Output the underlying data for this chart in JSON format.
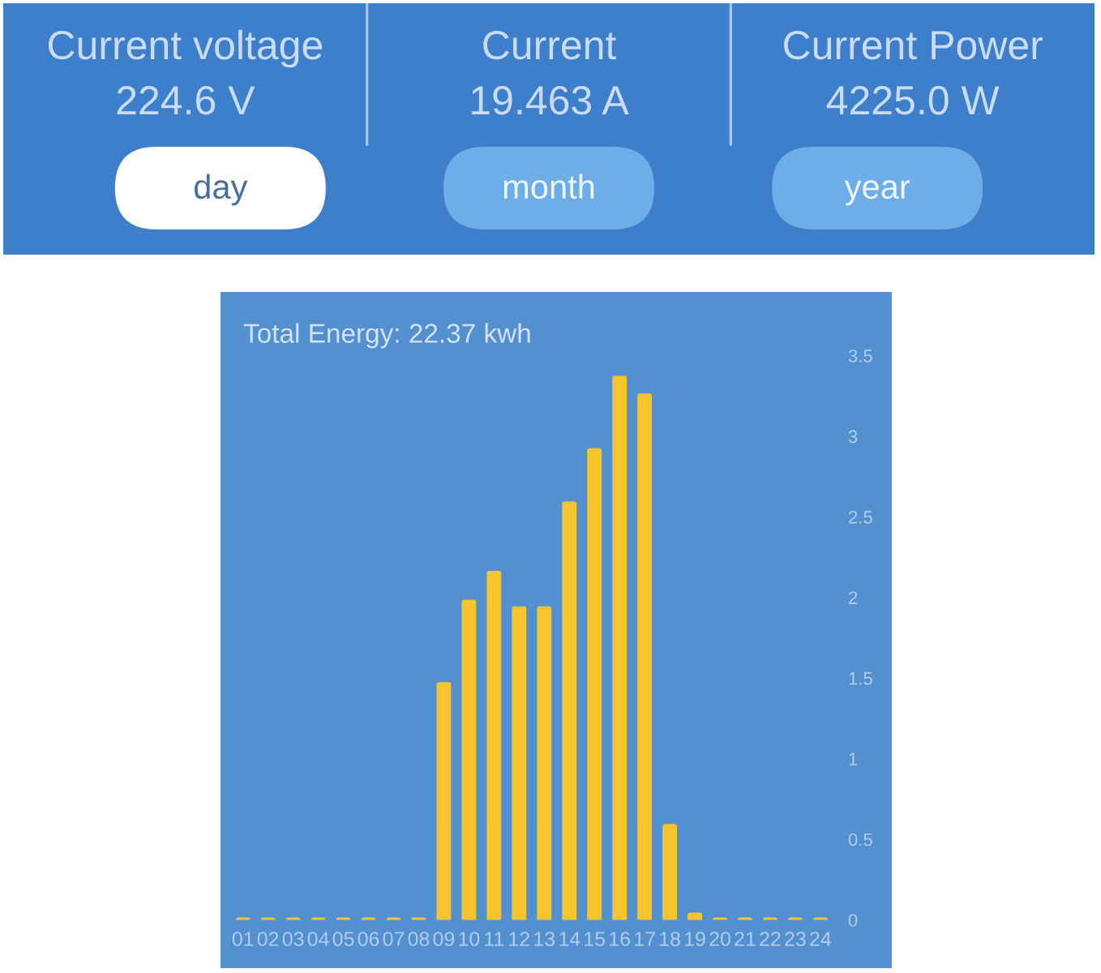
{
  "chart_data": [
    {
      "type": "other",
      "annotations": [
        "Current voltage",
        "224.6 V",
        "Current",
        "19.463 A",
        "Current Power",
        "4225.0 W",
        "day",
        "month",
        "year"
      ]
    },
    {
      "type": "bar",
      "title": "Total Energy: 22.37 kwh",
      "categories": [
        "01",
        "02",
        "03",
        "04",
        "05",
        "06",
        "07",
        "08",
        "09",
        "10",
        "11",
        "12",
        "13",
        "14",
        "15",
        "16",
        "17",
        "18",
        "19",
        "20",
        "21",
        "22",
        "23",
        "24"
      ],
      "values": [
        0,
        0,
        0,
        0,
        0,
        0,
        0,
        0,
        1.46,
        1.97,
        2.15,
        1.93,
        1.93,
        2.58,
        2.91,
        3.36,
        3.25,
        0.58,
        0.03,
        0,
        0,
        0,
        0,
        0
      ],
      "color": "#f6c42c",
      "ylim": [
        0,
        3.5
      ],
      "yticks": [
        0,
        0.5,
        1,
        1.5,
        2,
        2.5,
        3,
        3.5
      ],
      "grid": false
    }
  ]
}
